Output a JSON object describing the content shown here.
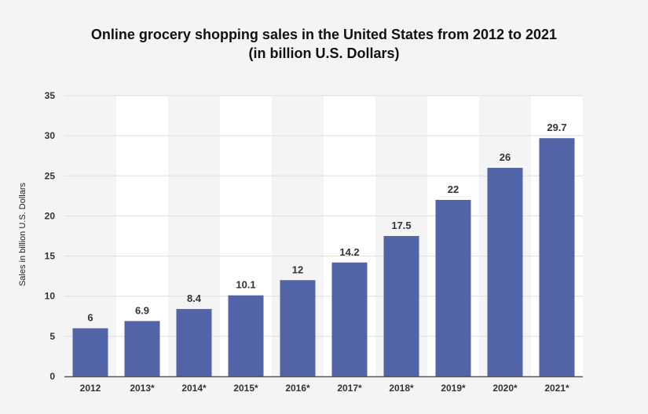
{
  "chart_data": {
    "type": "bar",
    "title_line1": "Online grocery shopping sales in the United States from 2012 to 2021",
    "title_line2": "(in billion U.S. Dollars)",
    "xlabel": "",
    "ylabel": "Sales in billion U.S. Dollars",
    "categories": [
      "2012",
      "2013*",
      "2014*",
      "2015*",
      "2016*",
      "2017*",
      "2018*",
      "2019*",
      "2020*",
      "2021*"
    ],
    "values": [
      6,
      6.9,
      8.4,
      10.1,
      12,
      14.2,
      17.5,
      22,
      26,
      29.7
    ],
    "data_labels": [
      "6",
      "6.9",
      "8.4",
      "10.1",
      "12",
      "14.2",
      "17.5",
      "22",
      "26",
      "29.7"
    ],
    "ylim": [
      0,
      35
    ],
    "yticks": [
      0,
      5,
      10,
      15,
      20,
      25,
      30,
      35
    ],
    "grid": true,
    "legend": "none",
    "colors": {
      "bar": "#5363a7",
      "grid": "#dedede",
      "band": "#ffffff",
      "background": "#f4f4f4"
    }
  }
}
